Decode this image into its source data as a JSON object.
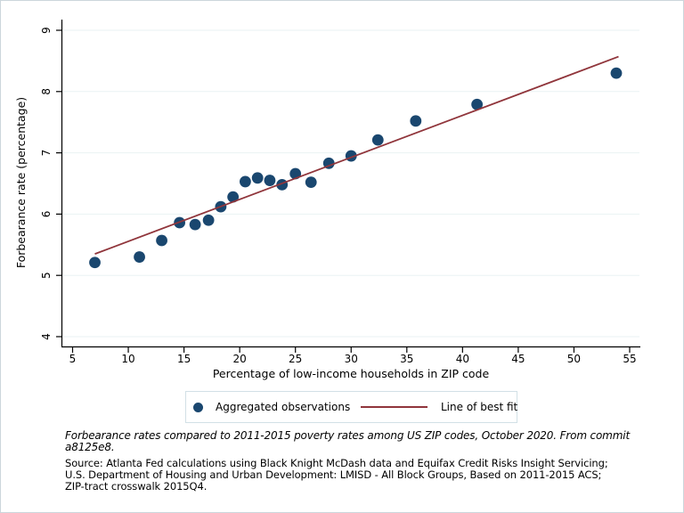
{
  "chart_data": {
    "type": "scatter",
    "title": "",
    "xlabel": "Percentage of low-income households in ZIP code",
    "ylabel": "Forbearance rate (percentage)",
    "xlim": [
      3.5,
      56
    ],
    "ylim": [
      3.7,
      9.2
    ],
    "x_ticks": [
      5,
      10,
      15,
      20,
      25,
      30,
      35,
      40,
      45,
      50,
      55
    ],
    "y_ticks": [
      4,
      5,
      6,
      7,
      8,
      9
    ],
    "grid": true,
    "grid_color": "#eaf2f3",
    "axis_color": "#000000",
    "legend_position": "bottom",
    "series": [
      {
        "name": "Aggregated observations",
        "type": "scatter",
        "color": "#1a476f",
        "points": [
          [
            7,
            5.21
          ],
          [
            11,
            5.3
          ],
          [
            13,
            5.57
          ],
          [
            14.6,
            5.86
          ],
          [
            16,
            5.83
          ],
          [
            17.2,
            5.9
          ],
          [
            18.3,
            6.12
          ],
          [
            19.4,
            6.28
          ],
          [
            20.5,
            6.53
          ],
          [
            21.6,
            6.59
          ],
          [
            22.7,
            6.55
          ],
          [
            23.8,
            6.48
          ],
          [
            25,
            6.66
          ],
          [
            26.4,
            6.52
          ],
          [
            28,
            6.83
          ],
          [
            30,
            6.95
          ],
          [
            32.4,
            7.21
          ],
          [
            35.8,
            7.52
          ],
          [
            41.3,
            7.79
          ],
          [
            53.8,
            8.3
          ]
        ]
      },
      {
        "name": "Line of best fit",
        "type": "line",
        "color": "#90353b",
        "points": [
          [
            7,
            5.35
          ],
          [
            54,
            8.57
          ]
        ]
      }
    ]
  },
  "legend": {
    "items": [
      {
        "label": "Aggregated observations",
        "marker": "circle-icon",
        "color": "#1a476f"
      },
      {
        "label": "Line of best fit",
        "marker": "line-icon",
        "color": "#90353b"
      }
    ]
  },
  "notes": {
    "caption_lines": [
      "Forbearance rates compared to 2011-2015 poverty rates among US ZIP codes, October 2020. From commit",
      "a8125e8."
    ],
    "source_lines": [
      "Source: Atlanta Fed calculations using Black Knight McDash data and Equifax Credit Risks Insight Servicing;",
      "U.S. Department of Housing and Urban Development: LMISD - All Block Groups, Based on 2011-2015 ACS;",
      "ZIP-tract crosswalk 2015Q4."
    ]
  }
}
